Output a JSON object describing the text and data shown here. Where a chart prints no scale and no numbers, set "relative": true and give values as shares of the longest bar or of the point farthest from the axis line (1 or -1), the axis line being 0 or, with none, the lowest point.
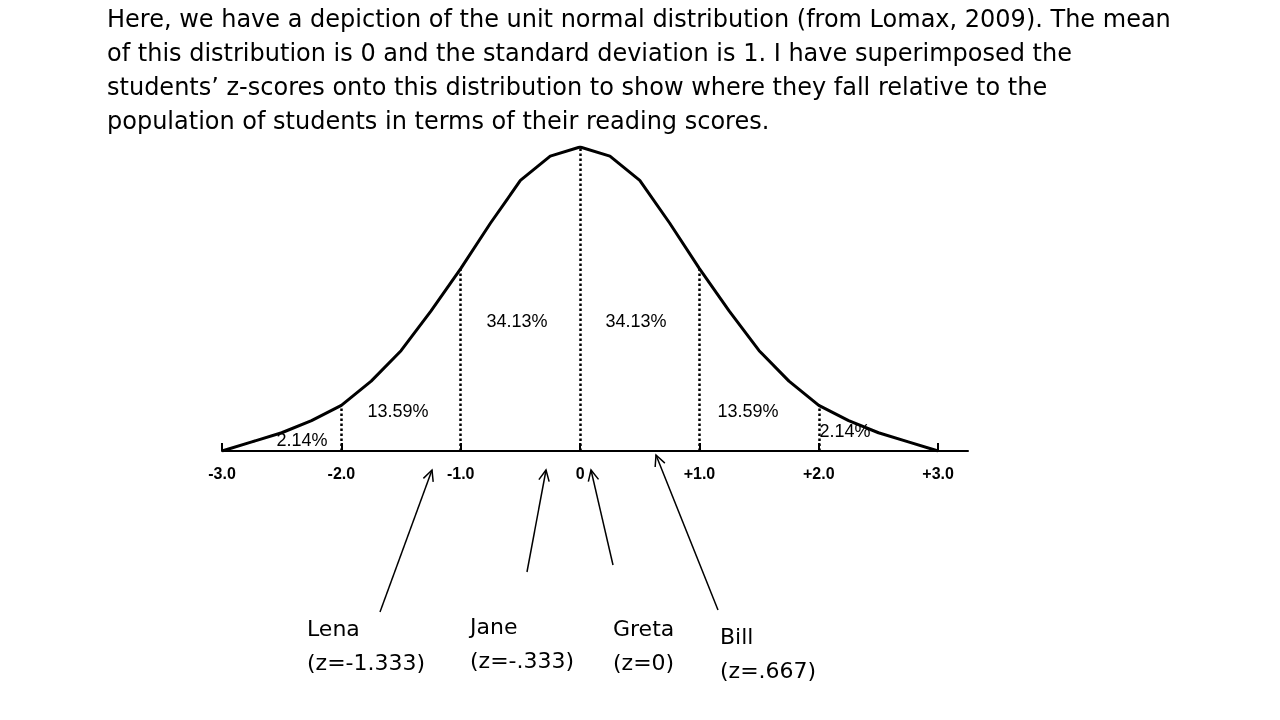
{
  "chart_data": {
    "type": "line",
    "title": "Here, we have a depiction of the unit normal distribution (from Lomax, 2009). The mean of this distribution is 0 and the standard deviation is 1. I have superimposed the students’ z-scores onto this distribution to show where they fall relative to the population of students in terms of their reading scores.",
    "relative": true,
    "marker": "none",
    "color": "#000000",
    "x": [
      -3,
      -2.75,
      -2.5,
      -2.25,
      -2,
      -1.75,
      -1.5,
      -1.25,
      -1,
      -0.75,
      -0.5,
      -0.25,
      0,
      0.25,
      0.5,
      0.75,
      1,
      1.25,
      1.5,
      1.75,
      2,
      2.25,
      2.5,
      2.75,
      3
    ],
    "values": [
      0,
      0.03,
      0.06,
      0.1,
      0.15,
      0.23,
      0.33,
      0.46,
      0.6,
      0.75,
      0.89,
      0.97,
      1,
      0.97,
      0.89,
      0.75,
      0.6,
      0.46,
      0.33,
      0.23,
      0.15,
      0.1,
      0.06,
      0.03,
      0
    ],
    "xlim": [
      -3,
      3.25
    ],
    "xticks": [
      {
        "value": -3,
        "label": "-3.0"
      },
      {
        "value": -2,
        "label": "-2.0"
      },
      {
        "value": -1,
        "label": "-1.0"
      },
      0,
      {
        "value": 1,
        "label": "+1.0"
      },
      {
        "value": 2,
        "label": "+2.0"
      },
      {
        "value": 3,
        "label": "+3.0"
      }
    ],
    "ref_lines": [
      {
        "axis": "x",
        "value": -2,
        "line_style": "dotted"
      },
      {
        "axis": "x",
        "value": -1,
        "line_style": "dotted"
      },
      {
        "axis": "x",
        "value": 0,
        "line_style": "dotted"
      },
      {
        "axis": "x",
        "value": 1,
        "line_style": "dotted"
      },
      {
        "axis": "x",
        "value": 2,
        "line_style": "dotted"
      }
    ],
    "annotations": [
      "2.14%",
      "13.59%",
      "34.13%",
      "34.13%",
      "13.59%",
      "2.14%",
      "Lena\n(z=-1.333)",
      "Jane\n(z=-.333)",
      "Greta\n(z=0)",
      "Bill\n(z=.667)"
    ]
  }
}
